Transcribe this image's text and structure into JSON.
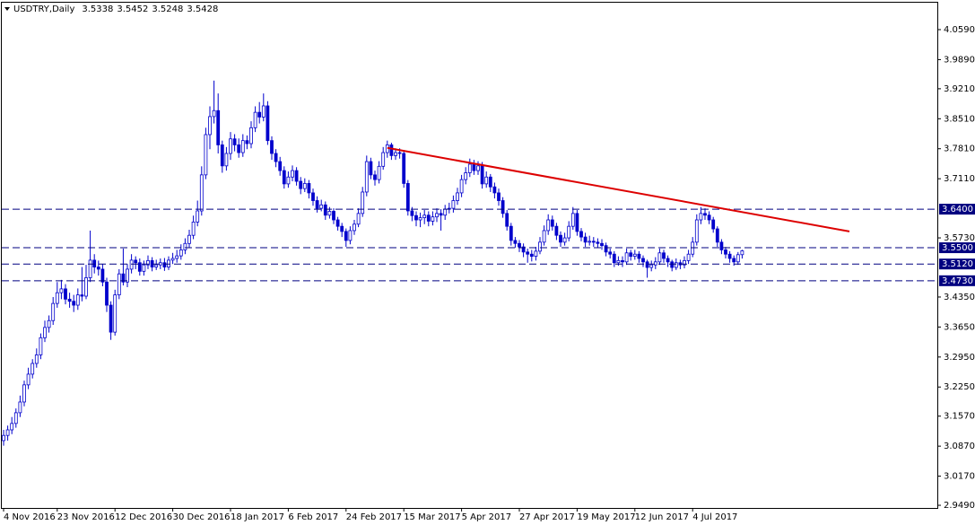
{
  "chart_data": {
    "type": "candlestick",
    "title": "USDTRY,Daily",
    "categories": [
      "4 Nov 2016",
      null,
      null,
      null,
      null,
      null,
      null,
      null,
      null,
      null,
      null,
      null,
      null,
      "23 Nov 2016",
      null,
      null,
      null,
      null,
      null,
      null,
      null,
      null,
      null,
      null,
      null,
      null,
      null,
      "12 Dec 2016",
      null,
      null,
      null,
      null,
      null,
      null,
      null,
      null,
      null,
      null,
      null,
      null,
      null,
      "30 Dec 2016",
      null,
      null,
      null,
      null,
      null,
      null,
      null,
      null,
      null,
      null,
      null,
      null,
      null,
      "18 Jan 2017",
      null,
      null,
      null,
      null,
      null,
      null,
      null,
      null,
      null,
      null,
      null,
      null,
      null,
      "6 Feb 2017",
      null,
      null,
      null,
      null,
      null,
      null,
      null,
      null,
      null,
      null,
      null,
      null,
      null,
      "24 Feb 2017",
      null,
      null,
      null,
      null,
      null,
      null,
      null,
      null,
      null,
      null,
      null,
      null,
      null,
      "15 Mar 2017",
      null,
      null,
      null,
      null,
      null,
      null,
      null,
      null,
      null,
      null,
      null,
      null,
      null,
      "5 Apr 2017",
      null,
      null,
      null,
      null,
      null,
      null,
      null,
      null,
      null,
      null,
      null,
      null,
      null,
      "27 Apr 2017",
      null,
      null,
      null,
      null,
      null,
      null,
      null,
      null,
      null,
      null,
      null,
      null,
      null,
      "19 May 2017",
      null,
      null,
      null,
      null,
      null,
      null,
      null,
      null,
      null,
      null,
      null,
      null,
      null,
      "12 Jun 2017",
      null,
      null,
      null,
      null,
      null,
      null,
      null,
      null,
      null,
      null,
      null,
      null,
      null,
      "4 Jul 2017",
      null,
      null,
      null,
      null,
      null,
      null,
      null,
      null,
      null,
      null,
      null,
      null
    ],
    "ohlc": [
      [
        3.1,
        3.125,
        3.088,
        3.112
      ],
      [
        3.112,
        3.135,
        3.1,
        3.125
      ],
      [
        3.125,
        3.155,
        3.115,
        3.14
      ],
      [
        3.14,
        3.175,
        3.13,
        3.165
      ],
      [
        3.165,
        3.205,
        3.155,
        3.19
      ],
      [
        3.19,
        3.24,
        3.18,
        3.23
      ],
      [
        3.23,
        3.27,
        3.22,
        3.255
      ],
      [
        3.255,
        3.29,
        3.245,
        3.28
      ],
      [
        3.28,
        3.315,
        3.27,
        3.3
      ],
      [
        3.3,
        3.35,
        3.29,
        3.34
      ],
      [
        3.34,
        3.38,
        3.33,
        3.364
      ],
      [
        3.364,
        3.392,
        3.352,
        3.38
      ],
      [
        3.38,
        3.435,
        3.37,
        3.42
      ],
      [
        3.42,
        3.47,
        3.41,
        3.445
      ],
      [
        3.445,
        3.475,
        3.43,
        3.454
      ],
      [
        3.454,
        3.465,
        3.418,
        3.43
      ],
      [
        3.43,
        3.445,
        3.41,
        3.425
      ],
      [
        3.425,
        3.44,
        3.4,
        3.416
      ],
      [
        3.416,
        3.455,
        3.405,
        3.44
      ],
      [
        3.44,
        3.505,
        3.425,
        3.437
      ],
      [
        3.437,
        3.51,
        3.43,
        3.48
      ],
      [
        3.48,
        3.59,
        3.47,
        3.521
      ],
      [
        3.521,
        3.535,
        3.49,
        3.505
      ],
      [
        3.505,
        3.52,
        3.485,
        3.5
      ],
      [
        3.5,
        3.512,
        3.46,
        3.47
      ],
      [
        3.47,
        3.48,
        3.4,
        3.416
      ],
      [
        3.416,
        3.425,
        3.335,
        3.353
      ],
      [
        3.353,
        3.452,
        3.345,
        3.44
      ],
      [
        3.44,
        3.5,
        3.43,
        3.489
      ],
      [
        3.489,
        3.548,
        3.462,
        3.47
      ],
      [
        3.47,
        3.512,
        3.458,
        3.5
      ],
      [
        3.5,
        3.535,
        3.49,
        3.521
      ],
      [
        3.521,
        3.53,
        3.5,
        3.515
      ],
      [
        3.515,
        3.525,
        3.485,
        3.495
      ],
      [
        3.495,
        3.52,
        3.485,
        3.51
      ],
      [
        3.51,
        3.532,
        3.5,
        3.52
      ],
      [
        3.52,
        3.528,
        3.495,
        3.505
      ],
      [
        3.505,
        3.522,
        3.498,
        3.51
      ],
      [
        3.51,
        3.525,
        3.5,
        3.515
      ],
      [
        3.515,
        3.526,
        3.496,
        3.505
      ],
      [
        3.505,
        3.53,
        3.498,
        3.521
      ],
      [
        3.521,
        3.538,
        3.512,
        3.525
      ],
      [
        3.525,
        3.545,
        3.515,
        3.531
      ],
      [
        3.531,
        3.558,
        3.522,
        3.545
      ],
      [
        3.545,
        3.572,
        3.535,
        3.56
      ],
      [
        3.56,
        3.592,
        3.55,
        3.579
      ],
      [
        3.579,
        3.625,
        3.57,
        3.61
      ],
      [
        3.61,
        3.66,
        3.6,
        3.636
      ],
      [
        3.636,
        3.74,
        3.625,
        3.72
      ],
      [
        3.72,
        3.83,
        3.71,
        3.814
      ],
      [
        3.814,
        3.88,
        3.78,
        3.856
      ],
      [
        3.856,
        3.94,
        3.84,
        3.87
      ],
      [
        3.87,
        3.91,
        3.77,
        3.79
      ],
      [
        3.79,
        3.8,
        3.725,
        3.741
      ],
      [
        3.741,
        3.785,
        3.73,
        3.77
      ],
      [
        3.77,
        3.82,
        3.755,
        3.804
      ],
      [
        3.804,
        3.815,
        3.775,
        3.79
      ],
      [
        3.79,
        3.805,
        3.76,
        3.772
      ],
      [
        3.772,
        3.815,
        3.762,
        3.8
      ],
      [
        3.8,
        3.812,
        3.78,
        3.793
      ],
      [
        3.793,
        3.845,
        3.782,
        3.83
      ],
      [
        3.83,
        3.88,
        3.82,
        3.866
      ],
      [
        3.866,
        3.89,
        3.84,
        3.855
      ],
      [
        3.855,
        3.91,
        3.845,
        3.881
      ],
      [
        3.881,
        3.892,
        3.79,
        3.8
      ],
      [
        3.8,
        3.81,
        3.755,
        3.77
      ],
      [
        3.77,
        3.78,
        3.738,
        3.751
      ],
      [
        3.751,
        3.762,
        3.718,
        3.73
      ],
      [
        3.73,
        3.74,
        3.688,
        3.699
      ],
      [
        3.699,
        3.728,
        3.69,
        3.715
      ],
      [
        3.715,
        3.742,
        3.705,
        3.73
      ],
      [
        3.73,
        3.738,
        3.695,
        3.705
      ],
      [
        3.705,
        3.715,
        3.675,
        3.688
      ],
      [
        3.688,
        3.712,
        3.68,
        3.7
      ],
      [
        3.7,
        3.708,
        3.665,
        3.678
      ],
      [
        3.678,
        3.688,
        3.648,
        3.66
      ],
      [
        3.66,
        3.67,
        3.632,
        3.642
      ],
      [
        3.642,
        3.662,
        3.635,
        3.65
      ],
      [
        3.65,
        3.658,
        3.615,
        3.626
      ],
      [
        3.626,
        3.645,
        3.618,
        3.635
      ],
      [
        3.635,
        3.642,
        3.605,
        3.615
      ],
      [
        3.615,
        3.622,
        3.59,
        3.6
      ],
      [
        3.6,
        3.608,
        3.575,
        3.588
      ],
      [
        3.588,
        3.595,
        3.552,
        3.567
      ],
      [
        3.567,
        3.6,
        3.558,
        3.59
      ],
      [
        3.59,
        3.615,
        3.58,
        3.605
      ],
      [
        3.605,
        3.642,
        3.598,
        3.63
      ],
      [
        3.63,
        3.692,
        3.622,
        3.68
      ],
      [
        3.68,
        3.765,
        3.67,
        3.751
      ],
      [
        3.751,
        3.76,
        3.71,
        3.72
      ],
      [
        3.72,
        3.73,
        3.695,
        3.709
      ],
      [
        3.709,
        3.752,
        3.7,
        3.74
      ],
      [
        3.74,
        3.785,
        3.732,
        3.772
      ],
      [
        3.772,
        3.8,
        3.76,
        3.79
      ],
      [
        3.79,
        3.795,
        3.755,
        3.765
      ],
      [
        3.765,
        3.782,
        3.755,
        3.772
      ],
      [
        3.772,
        3.782,
        3.758,
        3.77
      ],
      [
        3.77,
        3.778,
        3.69,
        3.7
      ],
      [
        3.7,
        3.708,
        3.625,
        3.636
      ],
      [
        3.636,
        3.645,
        3.612,
        3.625
      ],
      [
        3.625,
        3.635,
        3.6,
        3.615
      ],
      [
        3.615,
        3.632,
        3.598,
        3.62
      ],
      [
        3.62,
        3.638,
        3.605,
        3.626
      ],
      [
        3.626,
        3.635,
        3.6,
        3.612
      ],
      [
        3.612,
        3.635,
        3.602,
        3.622
      ],
      [
        3.622,
        3.642,
        3.61,
        3.63
      ],
      [
        3.63,
        3.64,
        3.59,
        3.626
      ],
      [
        3.626,
        3.65,
        3.615,
        3.64
      ],
      [
        3.64,
        3.655,
        3.63,
        3.642
      ],
      [
        3.642,
        3.672,
        3.632,
        3.66
      ],
      [
        3.66,
        3.69,
        3.65,
        3.678
      ],
      [
        3.678,
        3.72,
        3.668,
        3.709
      ],
      [
        3.709,
        3.738,
        3.698,
        3.725
      ],
      [
        3.725,
        3.758,
        3.715,
        3.745
      ],
      [
        3.745,
        3.755,
        3.72,
        3.73
      ],
      [
        3.73,
        3.752,
        3.72,
        3.741
      ],
      [
        3.741,
        3.75,
        3.688,
        3.699
      ],
      [
        3.699,
        3.728,
        3.69,
        3.715
      ],
      [
        3.715,
        3.722,
        3.68,
        3.692
      ],
      [
        3.692,
        3.702,
        3.665,
        3.678
      ],
      [
        3.678,
        3.688,
        3.648,
        3.66
      ],
      [
        3.66,
        3.668,
        3.62,
        3.63
      ],
      [
        3.63,
        3.638,
        3.59,
        3.6
      ],
      [
        3.6,
        3.608,
        3.555,
        3.567
      ],
      [
        3.567,
        3.575,
        3.55,
        3.56
      ],
      [
        3.56,
        3.568,
        3.54,
        3.552
      ],
      [
        3.552,
        3.56,
        3.528,
        3.54
      ],
      [
        3.54,
        3.548,
        3.515,
        3.535
      ],
      [
        3.535,
        3.545,
        3.518,
        3.53
      ],
      [
        3.53,
        3.552,
        3.52,
        3.542
      ],
      [
        3.542,
        3.575,
        3.535,
        3.563
      ],
      [
        3.563,
        3.602,
        3.555,
        3.59
      ],
      [
        3.59,
        3.628,
        3.58,
        3.615
      ],
      [
        3.615,
        3.625,
        3.59,
        3.6
      ],
      [
        3.6,
        3.608,
        3.568,
        3.579
      ],
      [
        3.579,
        3.588,
        3.552,
        3.563
      ],
      [
        3.563,
        3.585,
        3.555,
        3.573
      ],
      [
        3.573,
        3.612,
        3.565,
        3.6
      ],
      [
        3.6,
        3.645,
        3.592,
        3.63
      ],
      [
        3.63,
        3.638,
        3.578,
        3.588
      ],
      [
        3.588,
        3.596,
        3.565,
        3.575
      ],
      [
        3.575,
        3.585,
        3.552,
        3.563
      ],
      [
        3.563,
        3.578,
        3.555,
        3.565
      ],
      [
        3.565,
        3.575,
        3.552,
        3.563
      ],
      [
        3.563,
        3.572,
        3.55,
        3.56
      ],
      [
        3.56,
        3.57,
        3.545,
        3.555
      ],
      [
        3.555,
        3.562,
        3.53,
        3.54
      ],
      [
        3.54,
        3.548,
        3.525,
        3.535
      ],
      [
        3.535,
        3.542,
        3.505,
        3.515
      ],
      [
        3.515,
        3.53,
        3.508,
        3.52
      ],
      [
        3.52,
        3.53,
        3.505,
        3.517
      ],
      [
        3.517,
        3.548,
        3.51,
        3.538
      ],
      [
        3.538,
        3.545,
        3.52,
        3.53
      ],
      [
        3.53,
        3.545,
        3.522,
        3.535
      ],
      [
        3.535,
        3.542,
        3.515,
        3.525
      ],
      [
        3.525,
        3.532,
        3.505,
        3.517
      ],
      [
        3.517,
        3.522,
        3.48,
        3.504
      ],
      [
        3.504,
        3.52,
        3.495,
        3.51
      ],
      [
        3.51,
        3.528,
        3.5,
        3.517
      ],
      [
        3.517,
        3.548,
        3.51,
        3.538
      ],
      [
        3.538,
        3.545,
        3.515,
        3.525
      ],
      [
        3.525,
        3.532,
        3.505,
        3.517
      ],
      [
        3.517,
        3.522,
        3.495,
        3.504
      ],
      [
        3.504,
        3.525,
        3.498,
        3.515
      ],
      [
        3.515,
        3.522,
        3.5,
        3.51
      ],
      [
        3.51,
        3.53,
        3.502,
        3.52
      ],
      [
        3.52,
        3.545,
        3.512,
        3.535
      ],
      [
        3.535,
        3.575,
        3.528,
        3.563
      ],
      [
        3.563,
        3.628,
        3.555,
        3.615
      ],
      [
        3.615,
        3.645,
        3.605,
        3.63
      ],
      [
        3.63,
        3.642,
        3.615,
        3.626
      ],
      [
        3.626,
        3.635,
        3.605,
        3.615
      ],
      [
        3.615,
        3.622,
        3.585,
        3.594
      ],
      [
        3.594,
        3.6,
        3.552,
        3.563
      ],
      [
        3.563,
        3.57,
        3.535,
        3.545
      ],
      [
        3.545,
        3.552,
        3.525,
        3.535
      ],
      [
        3.535,
        3.542,
        3.515,
        3.525
      ],
      [
        3.525,
        3.532,
        3.508,
        3.517
      ],
      [
        3.517,
        3.54,
        3.51,
        3.5338
      ],
      [
        3.5338,
        3.5452,
        3.5248,
        3.5428
      ]
    ],
    "color": "#0000cc",
    "ylim": [
      2.9428,
      4.1218
    ],
    "yticks": [
      {
        "value": 4.059,
        "label": "4.0590"
      },
      {
        "value": 3.989,
        "label": "3.9890"
      },
      {
        "value": 3.921,
        "label": "3.9210"
      },
      {
        "value": 3.851,
        "label": "3.8510"
      },
      {
        "value": 3.781,
        "label": "3.7810"
      },
      {
        "value": 3.711,
        "label": "3.7110"
      },
      {
        "value": 3.573,
        "label": "3.5730"
      },
      {
        "value": 3.435,
        "label": "3.4350"
      },
      {
        "value": 3.365,
        "label": "3.3650"
      },
      {
        "value": 3.295,
        "label": "3.2950"
      },
      {
        "value": 3.225,
        "label": "3.2250"
      },
      {
        "value": 3.157,
        "label": "3.1570"
      },
      {
        "value": 3.087,
        "label": "3.0870"
      },
      {
        "value": 3.017,
        "label": "3.0170"
      },
      {
        "value": 2.949,
        "label": "2.9490"
      }
    ],
    "levels": [
      {
        "value": 3.64,
        "label": "3.6400"
      },
      {
        "value": 3.55,
        "label": "3.5500"
      },
      {
        "value": 3.512,
        "label": "3.5120"
      },
      {
        "value": 3.473,
        "label": "3.4730"
      }
    ],
    "level_color": "#000080",
    "trendline": {
      "x": [
        93,
        205
      ],
      "y": [
        3.783,
        3.588
      ],
      "color": "#dd0000"
    },
    "grid": false
  }
}
